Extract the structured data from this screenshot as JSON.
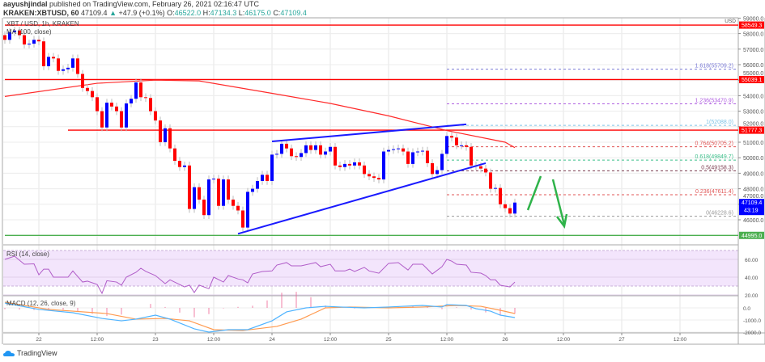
{
  "header": {
    "author": "aayushjindal",
    "published_text": "published on TradingView.com, February 26, 2021 02:16:47 UTC",
    "symbol": "KRAKEN:XBTUSD, 60",
    "last": "47109.4",
    "change_arrow": "▲",
    "change": "+47.9 (+0.1%)",
    "open_label": "O:",
    "open": "46522.0",
    "high_label": "H:",
    "high": "47134.3",
    "low_label": "L:",
    "low": "46175.0",
    "close_label": "C:",
    "close": "47109.4"
  },
  "legend": {
    "title": "XBT / USD, 1h, KRAKEN",
    "ma": "MA (100, close)",
    "rsi": "RSI (14, close)",
    "macd": "MACD (12, 26, close, 9)"
  },
  "footer": {
    "brand": "TradingView"
  },
  "colors": {
    "up": "#0000ff",
    "down": "#ff0000",
    "ma": "#ff2a2a",
    "trend": "#1a1aff",
    "support": "#4caf50",
    "rsi": "#b05cc8",
    "rsi_band": "#f3e5fc",
    "macd": "#4fb3ff",
    "signal": "#ff9a4f",
    "hist": "#f06292"
  },
  "price_axis": {
    "unit": "USD",
    "ticks": [
      "59000.0",
      "58000.0",
      "57000.0",
      "56000.0",
      "55000.0",
      "54000.0",
      "53000.0",
      "52000.0",
      "51000.0",
      "50000.0",
      "49000.0",
      "48000.0",
      "47000.0",
      "46000.0"
    ],
    "badges": [
      {
        "value": "58549.3",
        "price": 58549.3,
        "color": "#ff0000"
      },
      {
        "value": "55039.1",
        "price": 55039.1,
        "color": "#ff0000"
      },
      {
        "value": "51777.3",
        "price": 51777.3,
        "color": "#ff0000"
      },
      {
        "value": "47109.4",
        "price": 47109.4,
        "color": "#0000ff",
        "countdown": "43:19"
      },
      {
        "value": "44995.0",
        "price": 44995.0,
        "color": "#4caf50"
      }
    ]
  },
  "rsi_axis": {
    "ticks": [
      {
        "label": "60.00",
        "v": 60
      },
      {
        "label": "40.00",
        "v": 40
      },
      {
        "label": "20.00",
        "v": 20
      }
    ]
  },
  "macd_axis": {
    "ticks": [
      {
        "label": "0.0",
        "v": 0
      },
      {
        "label": "-1000.0",
        "v": -1000
      },
      {
        "label": "-2000.0",
        "v": -2000
      }
    ]
  },
  "time_axis": [
    {
      "label": "22",
      "t": "2021-02-22T00:00"
    },
    {
      "label": "12:00",
      "t": "2021-02-22T12:00"
    },
    {
      "label": "23",
      "t": "2021-02-23T00:00"
    },
    {
      "label": "12:00",
      "t": "2021-02-23T12:00"
    },
    {
      "label": "24",
      "t": "2021-02-24T00:00"
    },
    {
      "label": "12:00",
      "t": "2021-02-24T12:00"
    },
    {
      "label": "25",
      "t": "2021-02-25T00:00"
    },
    {
      "label": "12:00",
      "t": "2021-02-25T12:00"
    },
    {
      "label": "26",
      "t": "2021-02-26T00:00"
    },
    {
      "label": "12:00",
      "t": "2021-02-26T12:00"
    },
    {
      "label": "27",
      "t": "2021-02-27T00:00"
    },
    {
      "label": "12:00",
      "t": "2021-02-27T12:00"
    }
  ],
  "chart_data": {
    "type": "candlestick",
    "interval": "1h",
    "first_candle_time": "2021-02-21T17:00",
    "closes": [
      57600,
      58100,
      58200,
      57900,
      57300,
      57350,
      57600,
      57500,
      55900,
      56500,
      56400,
      55600,
      55700,
      55800,
      56400,
      55400,
      54500,
      54300,
      53900,
      53000,
      51950,
      53550,
      53300,
      53000,
      51950,
      53500,
      53800,
      54850,
      53900,
      53850,
      53000,
      52400,
      51000,
      51900,
      50600,
      49800,
      49400,
      49500,
      46700,
      48100,
      47300,
      46300,
      48600,
      48650,
      46900,
      48600,
      47300,
      46900,
      46600,
      45500,
      47800,
      48000,
      48500,
      48900,
      48500,
      50200,
      50250,
      50900,
      50600,
      50100,
      50050,
      50300,
      50800,
      50500,
      50800,
      50200,
      50400,
      50700,
      49500,
      49400,
      49600,
      49500,
      49700,
      49500,
      48950,
      48800,
      48700,
      48600,
      50400,
      50500,
      50550,
      50600,
      50400,
      49600,
      50350,
      50400,
      50450,
      49650,
      48950,
      49200,
      50250,
      51400,
      51300,
      50800,
      50800,
      50700,
      49500,
      49450,
      49300,
      49050,
      48000,
      48050,
      47000,
      46750,
      46400,
      47109.4
    ],
    "ylim": [
      44300,
      59000
    ],
    "ma100": [
      [
        "2021-02-21T17:00",
        53950
      ],
      [
        "2021-02-22T12:00",
        54800
      ],
      [
        "2021-02-23T00:00",
        55000
      ],
      [
        "2021-02-23T09:00",
        54950
      ],
      [
        "2021-02-24T00:00",
        54150
      ],
      [
        "2021-02-24T12:00",
        53500
      ],
      [
        "2021-02-25T00:00",
        52700
      ],
      [
        "2021-02-25T12:00",
        51750
      ],
      [
        "2021-02-26T00:00",
        51000
      ],
      [
        "2021-02-26T02:00",
        50650
      ]
    ],
    "horizontal_levels": [
      {
        "price": 58549.3,
        "from": "2021-02-21T17:00",
        "color": "#ff0000"
      },
      {
        "price": 55039.1,
        "from": "2021-02-21T17:00",
        "color": "#ff0000"
      },
      {
        "price": 51777.3,
        "from": "2021-02-22T06:00",
        "color": "#ff0000"
      },
      {
        "price": 44995.0,
        "from": "2021-02-21T17:00",
        "color": "#4caf50"
      }
    ],
    "trendlines": [
      {
        "from": [
          "2021-02-24T00:00",
          51050
        ],
        "to": [
          "2021-02-25T16:00",
          52150
        ]
      },
      {
        "from": [
          "2021-02-23T17:00",
          45100
        ],
        "to": [
          "2021-02-25T20:00",
          49650
        ]
      }
    ],
    "fibonacci": {
      "from": "2021-02-25T12:00",
      "levels": [
        {
          "label": "1.618(55709.2)",
          "price": 55709.2,
          "color": "#7b7bd6"
        },
        {
          "label": "1.236(53470.9)",
          "price": 53470.9,
          "color": "#b060e0"
        },
        {
          "label": "1(52088.0)",
          "price": 52088.0,
          "color": "#7ec3e6"
        },
        {
          "label": "0.764(50705.2)",
          "price": 50705.2,
          "color": "#e05555"
        },
        {
          "label": "0.618(49849.7)",
          "price": 49849.7,
          "color": "#3cbf8a"
        },
        {
          "label": "0.5(49158.3)",
          "price": 49158.3,
          "color": "#7a3b4f"
        },
        {
          "label": "0.236(47611.4)",
          "price": 47611.4,
          "color": "#e05555"
        },
        {
          "label": "0(46228.6)",
          "price": 46228.6,
          "color": "#999999"
        }
      ]
    },
    "rsi": [
      [
        "2021-02-21T17:00",
        60
      ],
      [
        "2021-02-21T19:00",
        63.6
      ],
      [
        "2021-02-21T21:00",
        54.5
      ],
      [
        "2021-02-21T23:00",
        55
      ],
      [
        "2021-02-22T00:00",
        42.7
      ],
      [
        "2021-02-22T01:00",
        49
      ],
      [
        "2021-02-22T02:00",
        49
      ],
      [
        "2021-02-22T03:00",
        40
      ],
      [
        "2021-02-22T06:00",
        40
      ],
      [
        "2021-02-22T07:00",
        47
      ],
      [
        "2021-02-22T09:00",
        34.5
      ],
      [
        "2021-02-22T10:00",
        35.5
      ],
      [
        "2021-02-22T12:00",
        31.8
      ],
      [
        "2021-02-22T13:00",
        21.8
      ],
      [
        "2021-02-22T14:00",
        36
      ],
      [
        "2021-02-22T16:00",
        34.5
      ],
      [
        "2021-02-22T17:00",
        31
      ],
      [
        "2021-02-22T18:00",
        40
      ],
      [
        "2021-02-22T20:00",
        45.5
      ],
      [
        "2021-02-22T21:00",
        50
      ],
      [
        "2021-02-22T22:00",
        46.5
      ],
      [
        "2021-02-23T00:00",
        41.8
      ],
      [
        "2021-02-23T02:00",
        32.7
      ],
      [
        "2021-02-23T03:00",
        37
      ],
      [
        "2021-02-23T06:00",
        29
      ],
      [
        "2021-02-23T07:00",
        31
      ],
      [
        "2021-02-23T08:00",
        22.7
      ],
      [
        "2021-02-23T09:00",
        31
      ],
      [
        "2021-02-23T11:00",
        27
      ],
      [
        "2021-02-23T12:00",
        40
      ],
      [
        "2021-02-23T14:00",
        34.5
      ],
      [
        "2021-02-23T15:00",
        41.8
      ],
      [
        "2021-02-23T17:00",
        38
      ],
      [
        "2021-02-23T18:00",
        37
      ],
      [
        "2021-02-23T19:00",
        33.6
      ],
      [
        "2021-02-23T20:00",
        43.6
      ],
      [
        "2021-02-23T22:00",
        46.4
      ],
      [
        "2021-02-24T00:00",
        47
      ],
      [
        "2021-02-24T01:00",
        53.6
      ],
      [
        "2021-02-24T03:00",
        56.4
      ],
      [
        "2021-02-24T04:00",
        52.7
      ],
      [
        "2021-02-24T06:00",
        52.7
      ],
      [
        "2021-02-24T09:00",
        56.4
      ],
      [
        "2021-02-24T10:00",
        51.8
      ],
      [
        "2021-02-24T12:00",
        54.5
      ],
      [
        "2021-02-24T13:00",
        47
      ],
      [
        "2021-02-24T15:00",
        47
      ],
      [
        "2021-02-24T16:00",
        49
      ],
      [
        "2021-02-24T17:00",
        46.4
      ],
      [
        "2021-02-24T19:00",
        51
      ],
      [
        "2021-02-24T20:00",
        47
      ],
      [
        "2021-02-24T22:00",
        44.5
      ],
      [
        "2021-02-25T00:00",
        55.5
      ],
      [
        "2021-02-25T02:00",
        56.4
      ],
      [
        "2021-02-25T04:00",
        48
      ],
      [
        "2021-02-25T05:00",
        54.5
      ],
      [
        "2021-02-25T07:00",
        54.5
      ],
      [
        "2021-02-25T09:00",
        43.6
      ],
      [
        "2021-02-25T11:00",
        51.8
      ],
      [
        "2021-02-25T12:00",
        60
      ],
      [
        "2021-02-25T13:00",
        58
      ],
      [
        "2021-02-25T14:00",
        54.5
      ],
      [
        "2021-02-25T16:00",
        53.6
      ],
      [
        "2021-02-25T17:00",
        45.5
      ],
      [
        "2021-02-25T19:00",
        44.5
      ],
      [
        "2021-02-25T20:00",
        41.8
      ],
      [
        "2021-02-25T21:00",
        37
      ],
      [
        "2021-02-25T22:00",
        37
      ],
      [
        "2021-02-25T23:00",
        30.9
      ],
      [
        "2021-02-26T01:00",
        29
      ],
      [
        "2021-02-26T02:00",
        34.5
      ]
    ],
    "rsi_band": [
      30,
      70
    ],
    "macd": [
      [
        "2021-02-21T17:00",
        400
      ],
      [
        "2021-02-22T00:00",
        -130
      ],
      [
        "2021-02-22T07:00",
        -400
      ],
      [
        "2021-02-22T13:00",
        -870
      ],
      [
        "2021-02-22T17:00",
        -1070
      ],
      [
        "2021-02-22T20:00",
        -930
      ],
      [
        "2021-02-23T00:00",
        -600
      ],
      [
        "2021-02-23T03:00",
        -930
      ],
      [
        "2021-02-23T08:00",
        -1730
      ],
      [
        "2021-02-23T11:00",
        -2000
      ],
      [
        "2021-02-23T15:00",
        -1800
      ],
      [
        "2021-02-23T19:00",
        -1800
      ],
      [
        "2021-02-24T00:00",
        -1070
      ],
      [
        "2021-02-24T03:00",
        -330
      ],
      [
        "2021-02-24T07:00",
        0
      ],
      [
        "2021-02-24T11:00",
        130
      ],
      [
        "2021-02-24T14:00",
        70
      ],
      [
        "2021-02-24T19:00",
        0
      ],
      [
        "2021-02-25T00:00",
        70
      ],
      [
        "2021-02-25T03:00",
        130
      ],
      [
        "2021-02-25T07:00",
        200
      ],
      [
        "2021-02-25T11:00",
        70
      ],
      [
        "2021-02-25T12:00",
        270
      ],
      [
        "2021-02-25T16:00",
        200
      ],
      [
        "2021-02-25T18:00",
        -70
      ],
      [
        "2021-02-25T21:00",
        -270
      ],
      [
        "2021-02-25T23:00",
        -600
      ],
      [
        "2021-02-26T02:00",
        -800
      ]
    ],
    "signal": [
      [
        "2021-02-21T17:00",
        470
      ],
      [
        "2021-02-22T02:00",
        -130
      ],
      [
        "2021-02-22T14:00",
        -470
      ],
      [
        "2021-02-22T20:00",
        -930
      ],
      [
        "2021-02-23T02:00",
        -870
      ],
      [
        "2021-02-23T07:00",
        -1070
      ],
      [
        "2021-02-23T12:00",
        -1800
      ],
      [
        "2021-02-23T18:00",
        -1870
      ],
      [
        "2021-02-24T01:00",
        -1530
      ],
      [
        "2021-02-24T06:00",
        -930
      ],
      [
        "2021-02-24T11:00",
        0
      ],
      [
        "2021-02-24T16:00",
        70
      ],
      [
        "2021-02-25T00:00",
        0
      ],
      [
        "2021-02-25T07:00",
        70
      ],
      [
        "2021-02-25T14:00",
        200
      ],
      [
        "2021-02-25T19:00",
        130
      ],
      [
        "2021-02-25T23:00",
        -200
      ],
      [
        "2021-02-26T02:00",
        -470
      ]
    ]
  }
}
